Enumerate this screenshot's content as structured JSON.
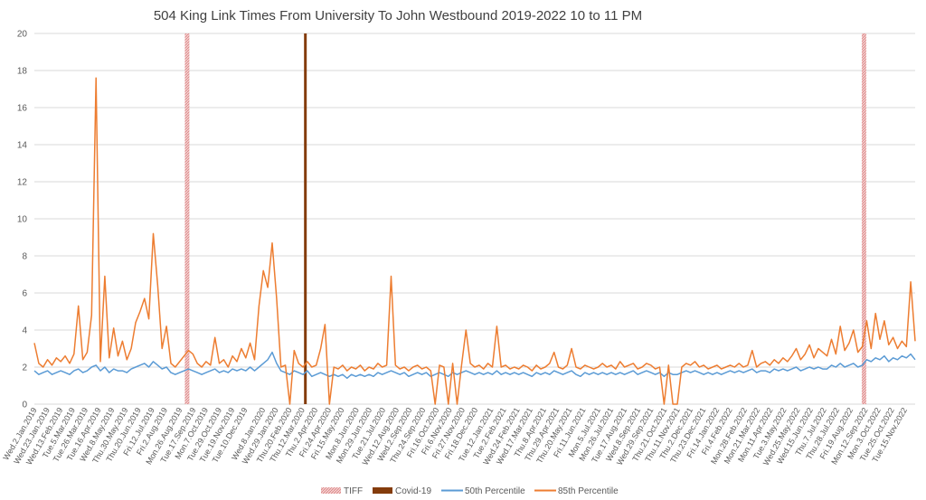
{
  "chart_data": {
    "type": "line",
    "title": "504 King Link Times From University To John Westbound 2019-2022 10 to 11 PM",
    "xlabel": "",
    "ylabel": "",
    "ylim": [
      0,
      20
    ],
    "yticks": [
      0,
      2,
      4,
      6,
      8,
      10,
      12,
      14,
      16,
      18,
      20
    ],
    "grid": true,
    "legend_position": "bottom",
    "x_range": [
      "2019-01-02",
      "2022-12-02"
    ],
    "x_tick_labels": [
      "Wed.2.Jan.2019",
      "Wed.23.Jan.2019",
      "Wed.13.Feb.2019",
      "Tue.5.Mar.2019",
      "Tue.26.Mar.2019",
      "Tue.16.Apr.2019",
      "Wed.8.May.2019",
      "Thu.30.May.2019",
      "Thu.20.Jun.2019",
      "Fri.12.Jul.2019",
      "Fri.2.Aug.2019",
      "Mon.26.Aug.2019",
      "Tue.17.Sep.2019",
      "Mon.7.Oct.2019",
      "Tue.29.Oct.2019",
      "Tue.19.Nov.2019",
      "Tue.10.Dec.2019",
      "Wed.8.Jan.2020",
      "Wed.29.Jan.2020",
      "Thu.20.Feb.2020",
      "Thu.12.Mar.2020",
      "Thu.2.Apr.2020",
      "Fri.24.Apr.2020",
      "Fri.15.May.2020",
      "Mon.8.Jun.2020",
      "Mon.29.Jun.2020",
      "Tue.21.Jul.2020",
      "Wed.12.Aug.2020",
      "Wed.2.Sep.2020",
      "Thu.24.Sep.2020",
      "Fri.16.Oct.2020",
      "Fri.6.Nov.2020",
      "Fri.27.Nov.2020",
      "Fri.18.Dec.2020",
      "Tue.12.Jan.2021",
      "Tue.2.Feb.2021",
      "Wed.24.Feb.2021",
      "Wed.17.Mar.2021",
      "Thu.8.Apr.2021",
      "Thu.29.Apr.2021",
      "Thu.20.May.2021",
      "Fri.11.Jun.2021",
      "Mon.5.Jul.2021",
      "Mon.26.Jul.2021",
      "Tue.17.Aug.2021",
      "Wed.8.Sep.2021",
      "Wed.29.Sep.2021",
      "Thu.21.Oct.2021",
      "Thu.11.Nov.2021",
      "Thu.2.Dec.2021",
      "Thu.23.Dec.2021",
      "Fri.14.Jan.2022",
      "Fri.4.Feb.2022",
      "Mon.28.Feb.2022",
      "Mon.21.Mar.2022",
      "Mon.11.Apr.2022",
      "Tue.3.May.2022",
      "Wed.25.May.2022",
      "Wed.15.Jun.2022",
      "Thu.7.Jul.2022",
      "Thu.28.Jul.2022",
      "Fri.19.Aug.2022",
      "Mon.12.Sep.2022",
      "Mon.3.Oct.2022",
      "Tue.25.Oct.2022",
      "Tue.15.Nov.2022"
    ],
    "events": [
      {
        "name": "TIFF",
        "color": "#e6a3a3",
        "dates": [
          "2019-09-07",
          "2022-09-10"
        ]
      },
      {
        "name": "Covid-19",
        "color": "#843c0c",
        "dates": [
          "2020-03-17"
        ]
      }
    ],
    "series": [
      {
        "name": "50th Percentile",
        "color": "#5b9bd5",
        "values": [
          1.8,
          1.6,
          1.7,
          1.8,
          1.6,
          1.7,
          1.8,
          1.7,
          1.6,
          1.8,
          1.9,
          1.7,
          1.8,
          2.0,
          2.1,
          1.8,
          2.0,
          1.7,
          1.9,
          1.8,
          1.8,
          1.7,
          1.9,
          2.0,
          2.1,
          2.2,
          2.0,
          2.3,
          2.1,
          1.9,
          2.0,
          1.7,
          1.6,
          1.7,
          1.8,
          1.9,
          1.8,
          1.7,
          1.6,
          1.7,
          1.8,
          1.9,
          1.7,
          1.8,
          1.7,
          1.9,
          1.8,
          1.9,
          1.8,
          2.0,
          1.8,
          2.0,
          2.2,
          2.4,
          2.8,
          2.2,
          1.8,
          1.7,
          1.6,
          1.8,
          1.7,
          1.6,
          1.8,
          1.5,
          1.6,
          1.7,
          1.6,
          1.5,
          1.6,
          1.5,
          1.6,
          1.4,
          1.6,
          1.5,
          1.6,
          1.5,
          1.6,
          1.5,
          1.7,
          1.6,
          1.7,
          1.8,
          1.7,
          1.6,
          1.7,
          1.5,
          1.6,
          1.7,
          1.6,
          1.7,
          1.5,
          1.6,
          1.7,
          1.6,
          1.5,
          1.7,
          1.6,
          1.7,
          1.8,
          1.7,
          1.6,
          1.7,
          1.6,
          1.7,
          1.6,
          1.8,
          1.6,
          1.7,
          1.6,
          1.7,
          1.6,
          1.7,
          1.6,
          1.5,
          1.7,
          1.6,
          1.7,
          1.6,
          1.8,
          1.7,
          1.6,
          1.7,
          1.8,
          1.6,
          1.5,
          1.7,
          1.6,
          1.7,
          1.6,
          1.7,
          1.6,
          1.7,
          1.6,
          1.7,
          1.6,
          1.7,
          1.8,
          1.6,
          1.7,
          1.8,
          1.7,
          1.6,
          1.7,
          1.5,
          1.7,
          1.6,
          1.6,
          1.7,
          1.8,
          1.7,
          1.8,
          1.7,
          1.6,
          1.7,
          1.6,
          1.7,
          1.6,
          1.7,
          1.8,
          1.7,
          1.8,
          1.7,
          1.8,
          1.9,
          1.7,
          1.8,
          1.8,
          1.7,
          1.9,
          1.8,
          1.9,
          1.8,
          1.9,
          2.0,
          1.8,
          1.9,
          2.0,
          1.9,
          2.0,
          1.9,
          1.9,
          2.1,
          2.0,
          2.2,
          2.0,
          2.1,
          2.2,
          2.0,
          2.1,
          2.4,
          2.3,
          2.5,
          2.4,
          2.6,
          2.3,
          2.5,
          2.4,
          2.6,
          2.5,
          2.7,
          2.4
        ]
      },
      {
        "name": "85th Percentile",
        "color": "#ed7d31",
        "values": [
          3.3,
          2.2,
          2.0,
          2.4,
          2.1,
          2.5,
          2.3,
          2.6,
          2.2,
          2.7,
          5.3,
          2.4,
          2.8,
          4.8,
          17.6,
          2.3,
          6.9,
          2.5,
          4.1,
          2.6,
          3.4,
          2.4,
          3.0,
          4.4,
          5.0,
          5.7,
          4.6,
          9.2,
          6.4,
          3.0,
          4.2,
          2.2,
          2.0,
          2.3,
          2.6,
          2.9,
          2.7,
          2.2,
          2.0,
          2.3,
          2.1,
          3.6,
          2.2,
          2.4,
          2.0,
          2.6,
          2.3,
          3.0,
          2.5,
          3.3,
          2.4,
          5.3,
          7.2,
          6.3,
          8.7,
          5.7,
          2.0,
          2.1,
          0,
          2.9,
          2.2,
          2.0,
          2.3,
          2.0,
          2.1,
          3.0,
          4.3,
          0,
          2.0,
          1.9,
          2.1,
          1.8,
          2.0,
          1.9,
          2.1,
          1.8,
          2.0,
          1.9,
          2.2,
          2.0,
          2.1,
          6.9,
          2.1,
          1.9,
          2.0,
          1.8,
          2.0,
          2.1,
          1.9,
          2.0,
          1.8,
          0,
          2.1,
          2.0,
          0,
          2.2,
          0,
          2.1,
          4.0,
          2.2,
          2.0,
          2.1,
          1.9,
          2.2,
          2.0,
          4.2,
          2.0,
          2.1,
          1.9,
          2.0,
          1.9,
          2.1,
          2.0,
          1.8,
          2.1,
          1.9,
          2.0,
          2.2,
          2.8,
          2.0,
          1.9,
          2.1,
          3.0,
          2.0,
          1.9,
          2.1,
          2.0,
          1.9,
          2.0,
          2.2,
          2.0,
          2.1,
          1.9,
          2.3,
          2.0,
          2.1,
          2.2,
          1.9,
          2.0,
          2.2,
          2.1,
          1.9,
          2.0,
          0,
          2.1,
          0,
          0,
          2.0,
          2.2,
          2.1,
          2.3,
          2.0,
          2.1,
          1.9,
          2.0,
          2.1,
          1.9,
          2.0,
          2.1,
          2.0,
          2.2,
          2.0,
          2.1,
          2.9,
          2.0,
          2.2,
          2.3,
          2.1,
          2.4,
          2.2,
          2.5,
          2.3,
          2.6,
          3.0,
          2.4,
          2.7,
          3.2,
          2.5,
          3.0,
          2.8,
          2.6,
          3.5,
          2.7,
          4.2,
          2.9,
          3.3,
          4.0,
          2.8,
          3.1,
          4.5,
          3.0,
          4.9,
          3.5,
          4.5,
          3.2,
          3.6,
          3.0,
          3.4,
          3.1,
          6.6,
          3.4
        ]
      }
    ]
  }
}
